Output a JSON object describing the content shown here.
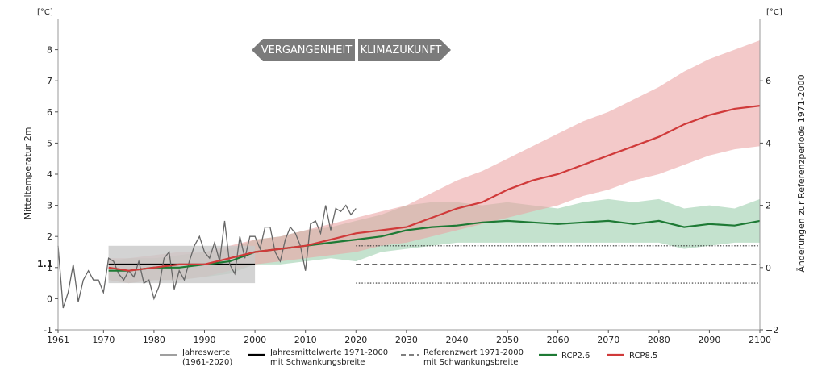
{
  "chart_data": {
    "type": "line",
    "unit_left": "[°C]",
    "unit_right": "[°C]",
    "ylabel_left": "Mitteltemperatur 2m",
    "ylabel_right": "Änderungen zur Referenzperiode 1971-2000",
    "ref_value_label": "1.1",
    "xlim": [
      1961,
      2100
    ],
    "ylim_left": [
      -1,
      9
    ],
    "ylim_right": [
      -2,
      8
    ],
    "xticks": [
      "1961",
      "1970",
      "1980",
      "1990",
      "2000",
      "2010",
      "2020",
      "2030",
      "2040",
      "2050",
      "2060",
      "2070",
      "2080",
      "2090",
      "2100"
    ],
    "yticks_left": [
      "-1",
      "0",
      "1",
      "2",
      "3",
      "4",
      "5",
      "6",
      "7",
      "8"
    ],
    "yticks_right": [
      "−2",
      "0",
      "2",
      "4",
      "6"
    ],
    "arrows": {
      "past": "VERGANGENHEIT",
      "future": "KLIMAZUKUNFT"
    },
    "reference": {
      "from": 1971,
      "to": 2000,
      "value": 1.1,
      "band": [
        0.5,
        1.7
      ]
    },
    "reference_future": {
      "from": 2020,
      "to": 2100,
      "value": 1.1,
      "upper": 1.7,
      "lower": 0.5
    },
    "annual": {
      "x": [
        1961,
        1962,
        1963,
        1964,
        1965,
        1966,
        1967,
        1968,
        1969,
        1970,
        1971,
        1972,
        1973,
        1974,
        1975,
        1976,
        1977,
        1978,
        1979,
        1980,
        1981,
        1982,
        1983,
        1984,
        1985,
        1986,
        1987,
        1988,
        1989,
        1990,
        1991,
        1992,
        1993,
        1994,
        1995,
        1996,
        1997,
        1998,
        1999,
        2000,
        2001,
        2002,
        2003,
        2004,
        2005,
        2006,
        2007,
        2008,
        2009,
        2010,
        2011,
        2012,
        2013,
        2014,
        2015,
        2016,
        2017,
        2018,
        2019,
        2020
      ],
      "y": [
        1.7,
        -0.3,
        0.2,
        1.1,
        -0.1,
        0.6,
        0.9,
        0.6,
        0.6,
        0.2,
        1.3,
        1.2,
        0.8,
        0.6,
        0.9,
        0.7,
        1.2,
        0.5,
        0.6,
        0.0,
        0.4,
        1.3,
        1.5,
        0.3,
        0.9,
        0.6,
        1.2,
        1.7,
        2.0,
        1.5,
        1.3,
        1.8,
        1.2,
        2.5,
        1.1,
        0.8,
        2.0,
        1.3,
        2.0,
        2.0,
        1.6,
        2.3,
        2.3,
        1.5,
        1.2,
        1.9,
        2.3,
        2.1,
        1.7,
        0.9,
        2.4,
        2.5,
        2.1,
        3.0,
        2.2,
        2.9,
        2.8,
        3.0,
        2.7,
        2.9
      ]
    },
    "series": [
      {
        "name": "RCP2.6",
        "color": "#1e7a35",
        "band_color": "#9ccfae",
        "x": [
          1971,
          1975,
          1980,
          1985,
          1990,
          1995,
          2000,
          2005,
          2010,
          2015,
          2020,
          2025,
          2030,
          2035,
          2040,
          2045,
          2050,
          2055,
          2060,
          2065,
          2070,
          2075,
          2080,
          2085,
          2090,
          2095,
          2100
        ],
        "y": [
          0.9,
          0.9,
          1.0,
          1.0,
          1.1,
          1.2,
          1.5,
          1.6,
          1.7,
          1.8,
          1.9,
          2.0,
          2.2,
          2.3,
          2.35,
          2.45,
          2.5,
          2.45,
          2.4,
          2.45,
          2.5,
          2.4,
          2.5,
          2.3,
          2.4,
          2.35,
          2.5
        ],
        "lower": [
          0.6,
          0.5,
          0.6,
          0.6,
          0.7,
          0.8,
          1.1,
          1.1,
          1.2,
          1.3,
          1.2,
          1.5,
          1.6,
          1.7,
          1.8,
          1.8,
          1.8,
          1.8,
          1.8,
          1.8,
          1.8,
          1.8,
          1.8,
          1.6,
          1.7,
          1.8,
          1.8
        ],
        "upper": [
          1.2,
          1.3,
          1.3,
          1.4,
          1.5,
          1.6,
          1.9,
          2.0,
          2.2,
          2.3,
          2.5,
          2.7,
          3.0,
          3.1,
          3.1,
          3.0,
          3.1,
          3.0,
          2.9,
          3.1,
          3.2,
          3.1,
          3.2,
          2.9,
          3.0,
          2.9,
          3.2
        ]
      },
      {
        "name": "RCP8.5",
        "color": "#d03a3a",
        "band_color": "#eba5a5",
        "x": [
          1971,
          1975,
          1980,
          1985,
          1990,
          1995,
          2000,
          2005,
          2010,
          2015,
          2020,
          2025,
          2030,
          2035,
          2040,
          2045,
          2050,
          2055,
          2060,
          2065,
          2070,
          2075,
          2080,
          2085,
          2090,
          2095,
          2100
        ],
        "y": [
          1.0,
          0.9,
          1.0,
          1.1,
          1.1,
          1.3,
          1.5,
          1.6,
          1.7,
          1.9,
          2.1,
          2.2,
          2.3,
          2.6,
          2.9,
          3.1,
          3.5,
          3.8,
          4.0,
          4.3,
          4.6,
          4.9,
          5.2,
          5.6,
          5.9,
          6.1,
          6.2
        ],
        "lower": [
          0.6,
          0.5,
          0.6,
          0.6,
          0.7,
          0.9,
          1.1,
          1.2,
          1.3,
          1.4,
          1.5,
          1.7,
          1.8,
          2.0,
          2.2,
          2.4,
          2.6,
          2.8,
          3.0,
          3.3,
          3.5,
          3.8,
          4.0,
          4.3,
          4.6,
          4.8,
          4.9
        ],
        "upper": [
          1.3,
          1.3,
          1.4,
          1.5,
          1.5,
          1.7,
          1.9,
          2.0,
          2.2,
          2.4,
          2.6,
          2.8,
          3.0,
          3.4,
          3.8,
          4.1,
          4.5,
          4.9,
          5.3,
          5.7,
          6.0,
          6.4,
          6.8,
          7.3,
          7.7,
          8.0,
          8.3
        ]
      }
    ],
    "legend": [
      {
        "key": "annual",
        "label1": "Jahreswerte",
        "label2": "(1961-2020)"
      },
      {
        "key": "mean",
        "label1": "Jahresmittelwerte 1971-2000",
        "label2": "mit Schwankungsbreite"
      },
      {
        "key": "ref",
        "label1": "Referenzwert 1971-2000",
        "label2": "mit Schwankungsbreite"
      },
      {
        "key": "rcp26",
        "label1": "RCP2.6",
        "label2": ""
      },
      {
        "key": "rcp85",
        "label1": "RCP8.5",
        "label2": ""
      }
    ]
  }
}
